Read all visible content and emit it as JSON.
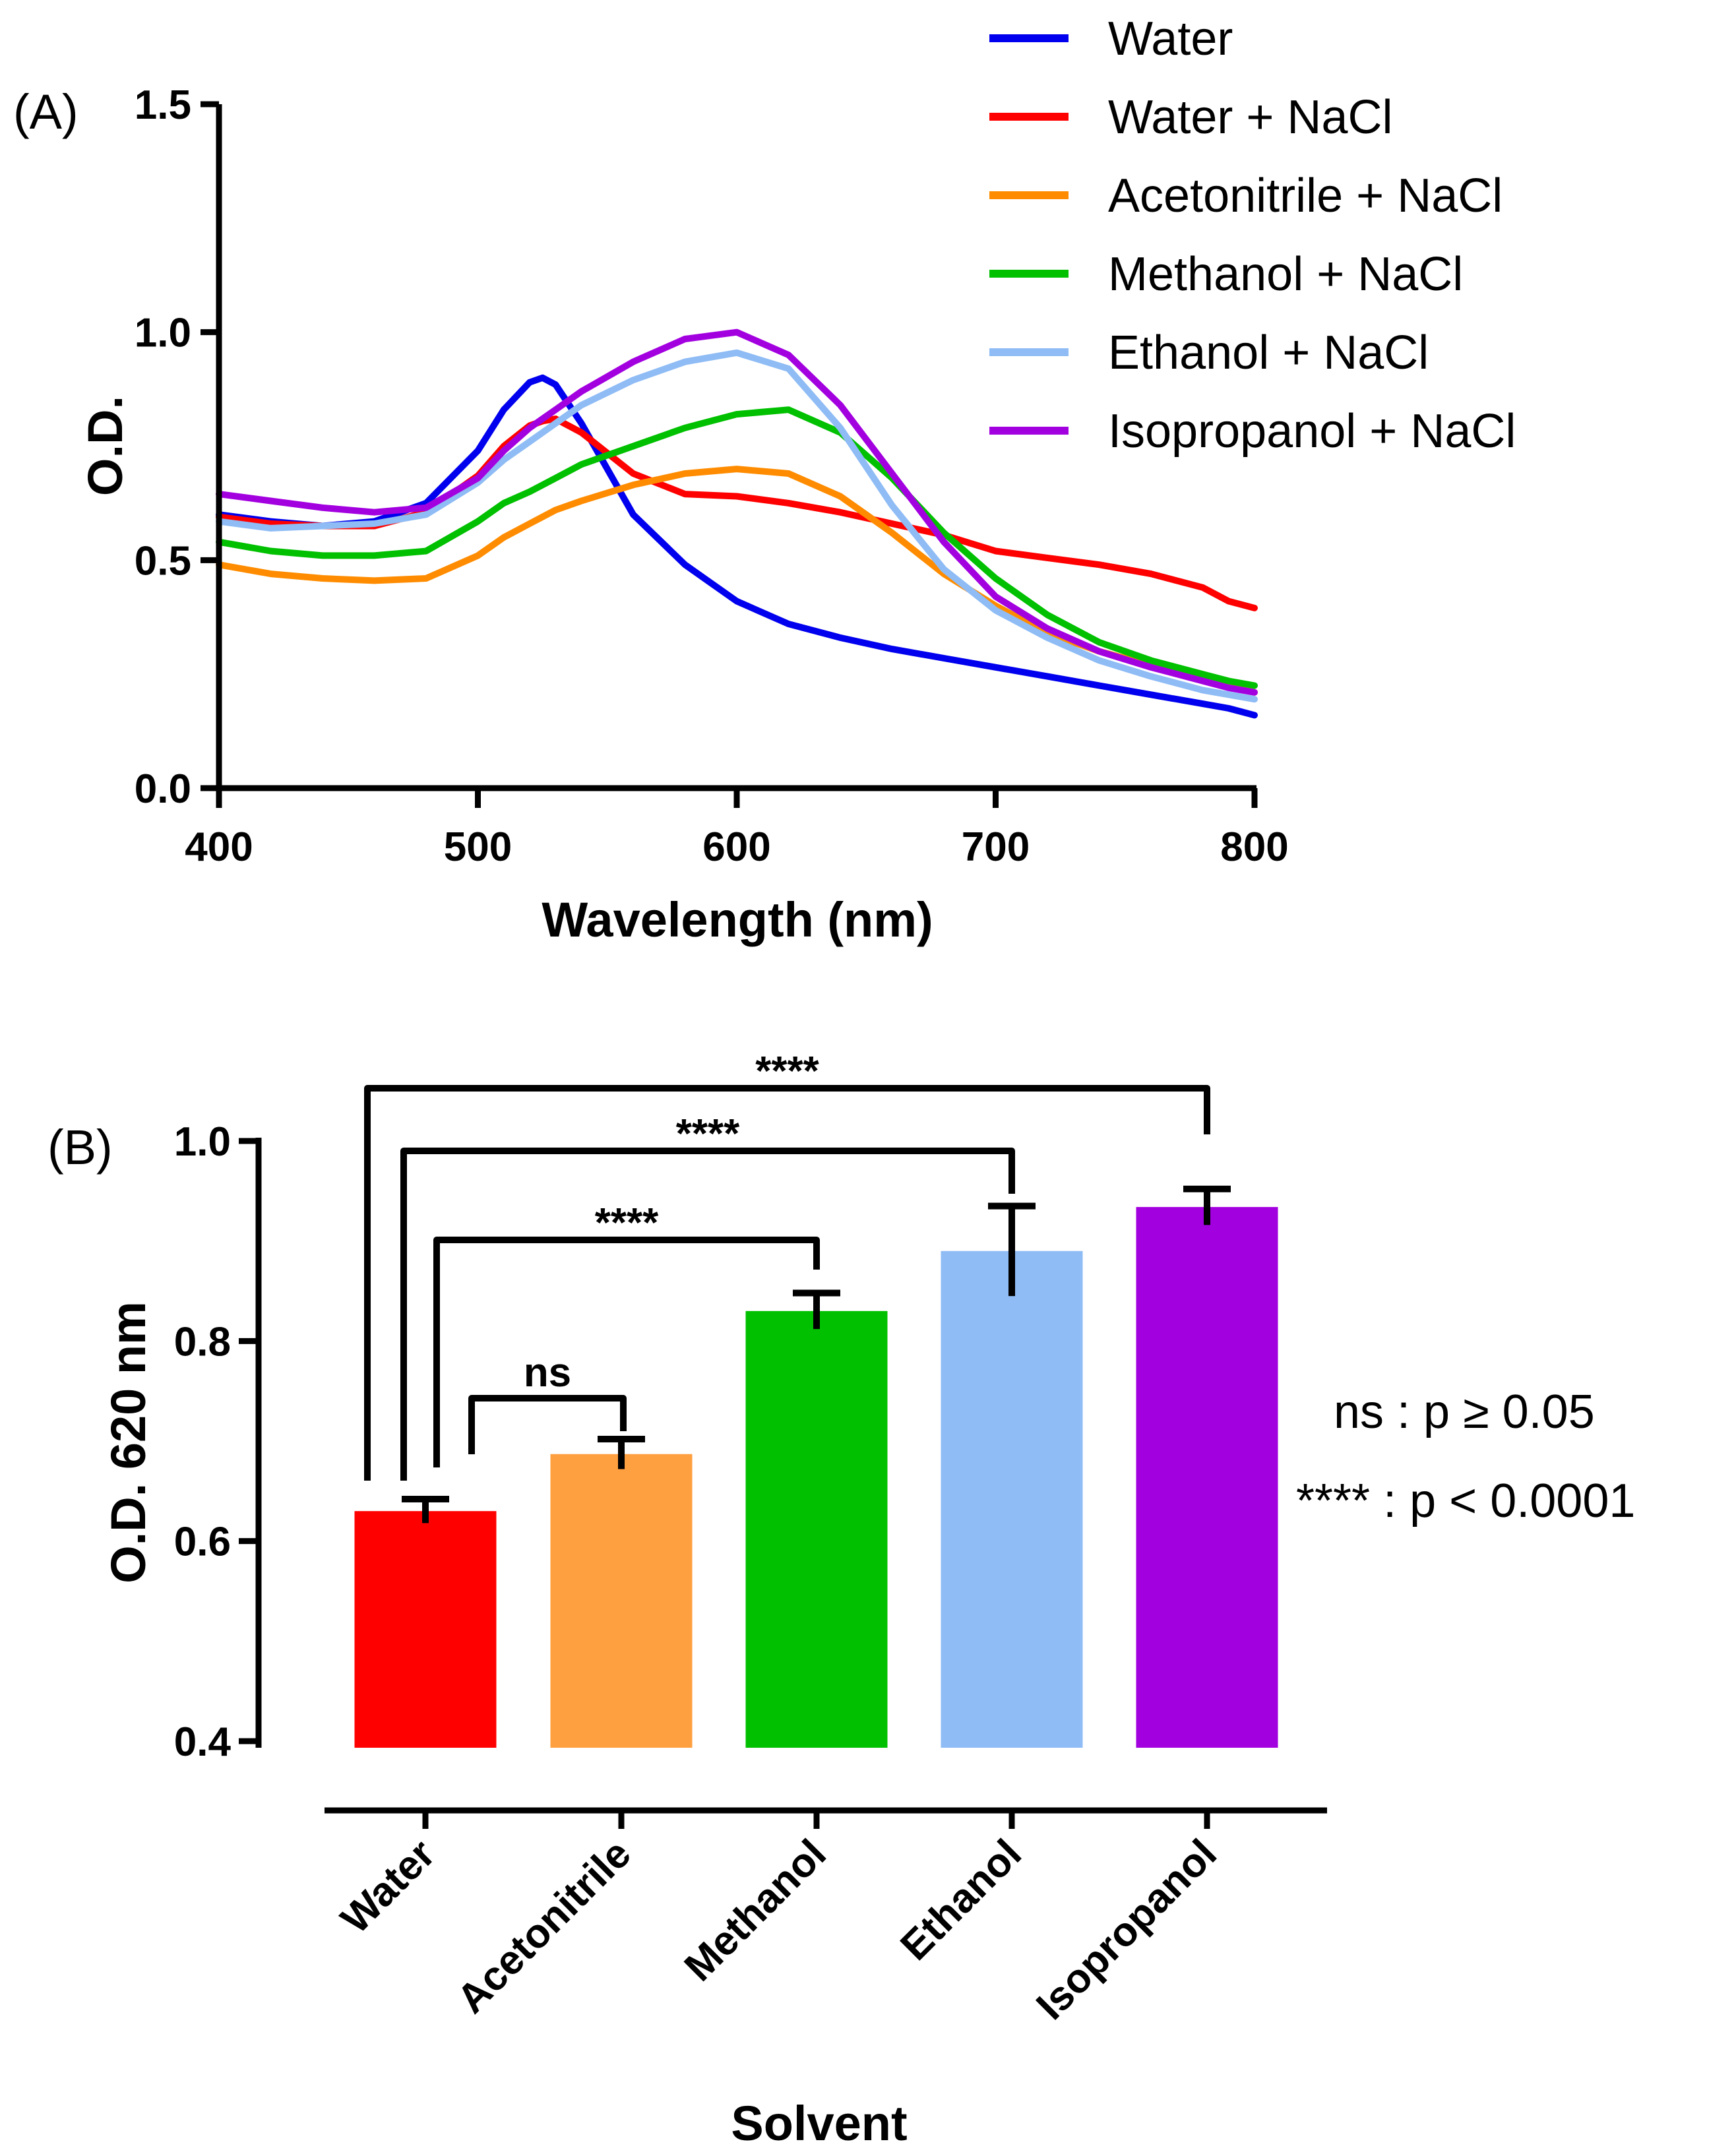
{
  "chart_data": [
    {
      "panel": "(A)",
      "type": "line",
      "xlabel": "Wavelength (nm)",
      "ylabel": "O.D.",
      "xlim": [
        400,
        800
      ],
      "ylim": [
        0,
        1.5
      ],
      "xticks": [
        400,
        500,
        600,
        700,
        800
      ],
      "xtick_labels": [
        "400",
        "500",
        "600",
        "700",
        "800"
      ],
      "yticks": [
        0,
        0.5,
        1.0,
        1.5
      ],
      "ytick_labels": [
        "0.0",
        "0.5",
        "1.0",
        "1.5"
      ],
      "legend_position": "top-right",
      "x": [
        400,
        420,
        440,
        460,
        480,
        500,
        510,
        520,
        525,
        530,
        540,
        560,
        580,
        600,
        620,
        640,
        660,
        680,
        700,
        720,
        740,
        760,
        780,
        790,
        800
      ],
      "series": [
        {
          "name": "Water",
          "color": "#0000ee",
          "values": [
            0.6,
            0.585,
            0.575,
            0.585,
            0.625,
            0.74,
            0.83,
            0.89,
            0.9,
            0.885,
            0.8,
            0.6,
            0.49,
            0.41,
            0.36,
            0.33,
            0.305,
            0.285,
            0.265,
            0.245,
            0.225,
            0.205,
            0.185,
            0.175,
            0.16
          ]
        },
        {
          "name": "Water + NaCl",
          "color": "#ff0000",
          "values": [
            0.595,
            0.58,
            0.575,
            0.575,
            0.605,
            0.685,
            0.75,
            0.795,
            0.805,
            0.81,
            0.78,
            0.69,
            0.645,
            0.64,
            0.625,
            0.605,
            0.58,
            0.555,
            0.52,
            0.505,
            0.49,
            0.47,
            0.44,
            0.41,
            0.395
          ]
        },
        {
          "name": "Acetonitrile + NaCl",
          "color": "#ff8c00",
          "values": [
            0.49,
            0.47,
            0.46,
            0.455,
            0.46,
            0.51,
            0.55,
            0.58,
            0.595,
            0.61,
            0.63,
            0.665,
            0.69,
            0.7,
            0.69,
            0.64,
            0.56,
            0.47,
            0.4,
            0.34,
            0.3,
            0.27,
            0.24,
            0.225,
            0.21
          ]
        },
        {
          "name": "Methanol + NaCl",
          "color": "#00c000",
          "values": [
            0.54,
            0.52,
            0.51,
            0.51,
            0.52,
            0.585,
            0.625,
            0.65,
            0.665,
            0.68,
            0.71,
            0.75,
            0.79,
            0.82,
            0.83,
            0.78,
            0.68,
            0.56,
            0.46,
            0.38,
            0.32,
            0.28,
            0.25,
            0.235,
            0.225
          ]
        },
        {
          "name": "Ethanol + NaCl",
          "color": "#8fbcf5",
          "values": [
            0.585,
            0.57,
            0.575,
            0.58,
            0.6,
            0.67,
            0.72,
            0.76,
            0.78,
            0.8,
            0.84,
            0.895,
            0.935,
            0.955,
            0.92,
            0.79,
            0.62,
            0.48,
            0.39,
            0.33,
            0.28,
            0.245,
            0.215,
            0.205,
            0.195
          ]
        },
        {
          "name": "Isopropanol + NaCl",
          "color": "#a300e0",
          "values": [
            0.645,
            0.63,
            0.615,
            0.605,
            0.615,
            0.68,
            0.74,
            0.79,
            0.81,
            0.83,
            0.87,
            0.935,
            0.985,
            1.0,
            0.95,
            0.84,
            0.69,
            0.54,
            0.42,
            0.35,
            0.3,
            0.265,
            0.235,
            0.22,
            0.21
          ]
        }
      ]
    },
    {
      "panel": "(B)",
      "type": "bar",
      "xlabel": "Solvent",
      "ylabel": "O.D. 620 nm",
      "ylim": [
        0.4,
        1.0
      ],
      "yticks": [
        0.4,
        0.6,
        0.8,
        1.0
      ],
      "ytick_labels": [
        "0.4",
        "0.6",
        "0.8",
        "1.0"
      ],
      "categories": [
        "Water",
        "Acetonitrile",
        "Methanol",
        "Ethanol",
        "Isopropanol"
      ],
      "values": [
        0.63,
        0.687,
        0.83,
        0.89,
        0.934
      ],
      "errors": [
        0.012,
        0.015,
        0.018,
        0.045,
        0.018
      ],
      "colors": [
        "#ff0000",
        "#ffa040",
        "#00c000",
        "#8fbcf5",
        "#a300e0"
      ],
      "comparisons": [
        {
          "from": "Water",
          "to": "Acetonitrile",
          "label": "ns"
        },
        {
          "from": "Water",
          "to": "Methanol",
          "label": "****"
        },
        {
          "from": "Water",
          "to": "Ethanol",
          "label": "****"
        },
        {
          "from": "Water",
          "to": "Isopropanol",
          "label": "****"
        }
      ],
      "notes": [
        "ns : p ≥ 0.05",
        "**** : p < 0.0001"
      ]
    }
  ]
}
